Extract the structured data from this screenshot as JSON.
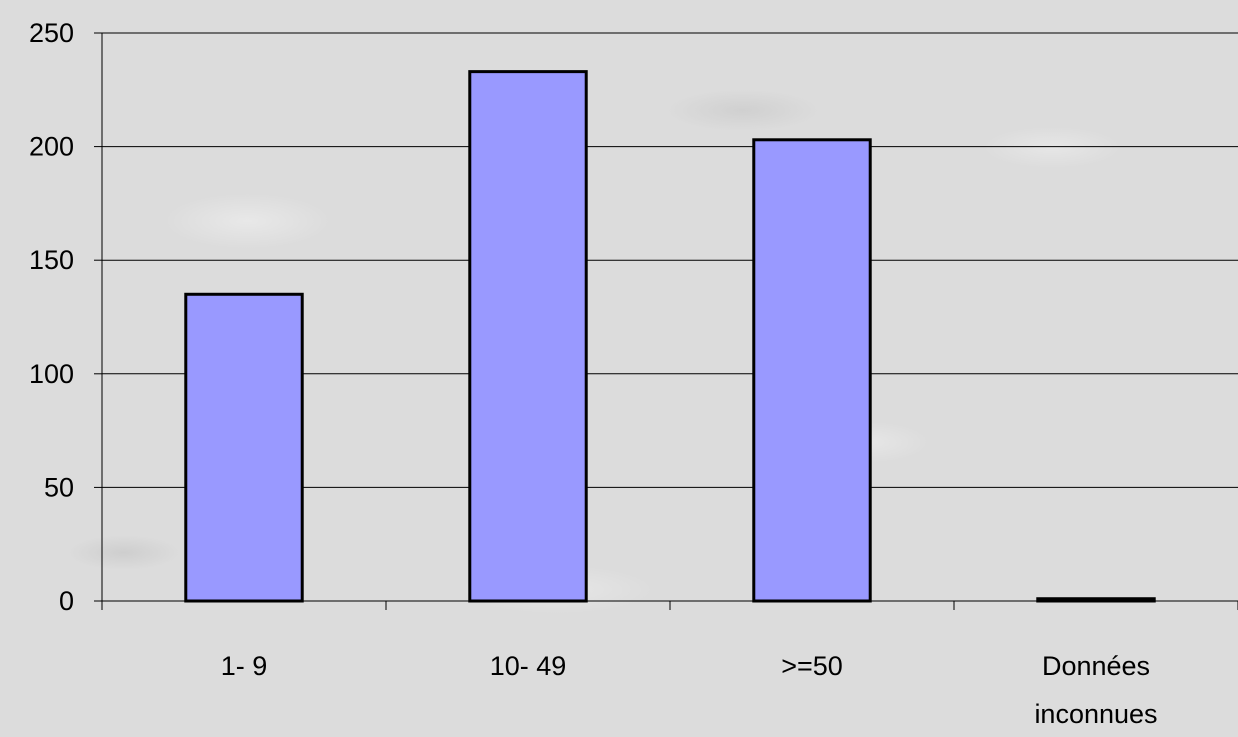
{
  "chart_data": {
    "type": "bar",
    "categories": [
      "1- 9",
      "10- 49",
      ">=50",
      "Données inconnues"
    ],
    "values": [
      135,
      233,
      203,
      1
    ],
    "title": "",
    "xlabel": "",
    "ylabel": "",
    "ylim": [
      0,
      250
    ],
    "yticks": [
      0,
      50,
      100,
      150,
      200,
      250
    ],
    "grid": true,
    "colors": {
      "bar_fill": "#9999ff",
      "bar_stroke": "#000000",
      "grid": "#000000"
    }
  }
}
